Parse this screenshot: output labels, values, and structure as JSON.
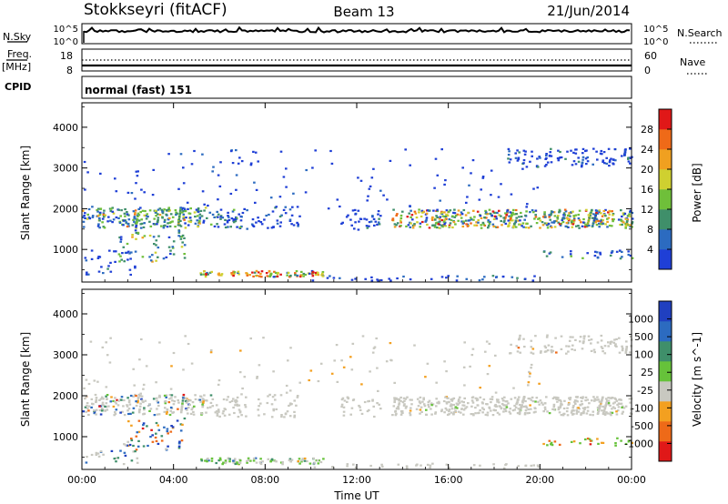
{
  "header": {
    "station": "Stokkseyri (fitACF)",
    "beam": "Beam 13",
    "date": "21/Jun/2014"
  },
  "panels": {
    "nsky": {
      "label": "N.Sky",
      "left_ticks": [
        "10^5",
        "10^0"
      ],
      "right_ticks": [
        "10^5",
        "10^0"
      ],
      "right_label": "N.Search"
    },
    "freq": {
      "label_top": "Freq.",
      "label_unit": "[MHz]",
      "left_ticks": [
        "18",
        "8"
      ],
      "right_ticks": [
        "60",
        "0"
      ],
      "right_label": "Nave"
    },
    "cpid": {
      "label": "CPID",
      "value": "normal (fast) 151"
    }
  },
  "colors": {
    "power_scale": [
      "#1f3fd6",
      "#2c6bc0",
      "#3f8f6a",
      "#6fbf3a",
      "#cfd030",
      "#f0a020",
      "#ef6a18",
      "#e01818"
    ],
    "velocity_scale": [
      "#2040c0",
      "#2c6bc0",
      "#3f8f6a",
      "#66c23a",
      "#c8c8c0",
      "#f3a020",
      "#ee6a18",
      "#e01818"
    ]
  },
  "chart_data": [
    {
      "type": "heatmap",
      "title": "",
      "xlabel": "",
      "ylabel": "Slant Range [km]",
      "x_ticks": [
        "00:00",
        "04:00",
        "08:00",
        "12:00",
        "16:00",
        "20:00",
        "00:00"
      ],
      "y_ticks": [
        "1000",
        "2000",
        "3000",
        "4000"
      ],
      "xlim": [
        0,
        24
      ],
      "ylim": [
        200,
        4600
      ],
      "colorbar": {
        "label": "Power [dB]",
        "ticks": [
          "4",
          "8",
          "12",
          "16",
          "20",
          "24",
          "28"
        ],
        "range": [
          0,
          30
        ]
      }
    },
    {
      "type": "heatmap",
      "title": "",
      "xlabel": "Time UT",
      "ylabel": "Slant Range [km]",
      "x_ticks": [
        "00:00",
        "04:00",
        "08:00",
        "12:00",
        "16:00",
        "20:00",
        "00:00"
      ],
      "y_ticks": [
        "1000",
        "2000",
        "3000",
        "4000"
      ],
      "xlim": [
        0,
        24
      ],
      "ylim": [
        200,
        4600
      ],
      "colorbar": {
        "label": "Velocity [m s^-1]",
        "ticks": [
          "1000",
          "500",
          "100",
          "25",
          "-25",
          "-100",
          "-500",
          "-1000"
        ]
      }
    }
  ]
}
